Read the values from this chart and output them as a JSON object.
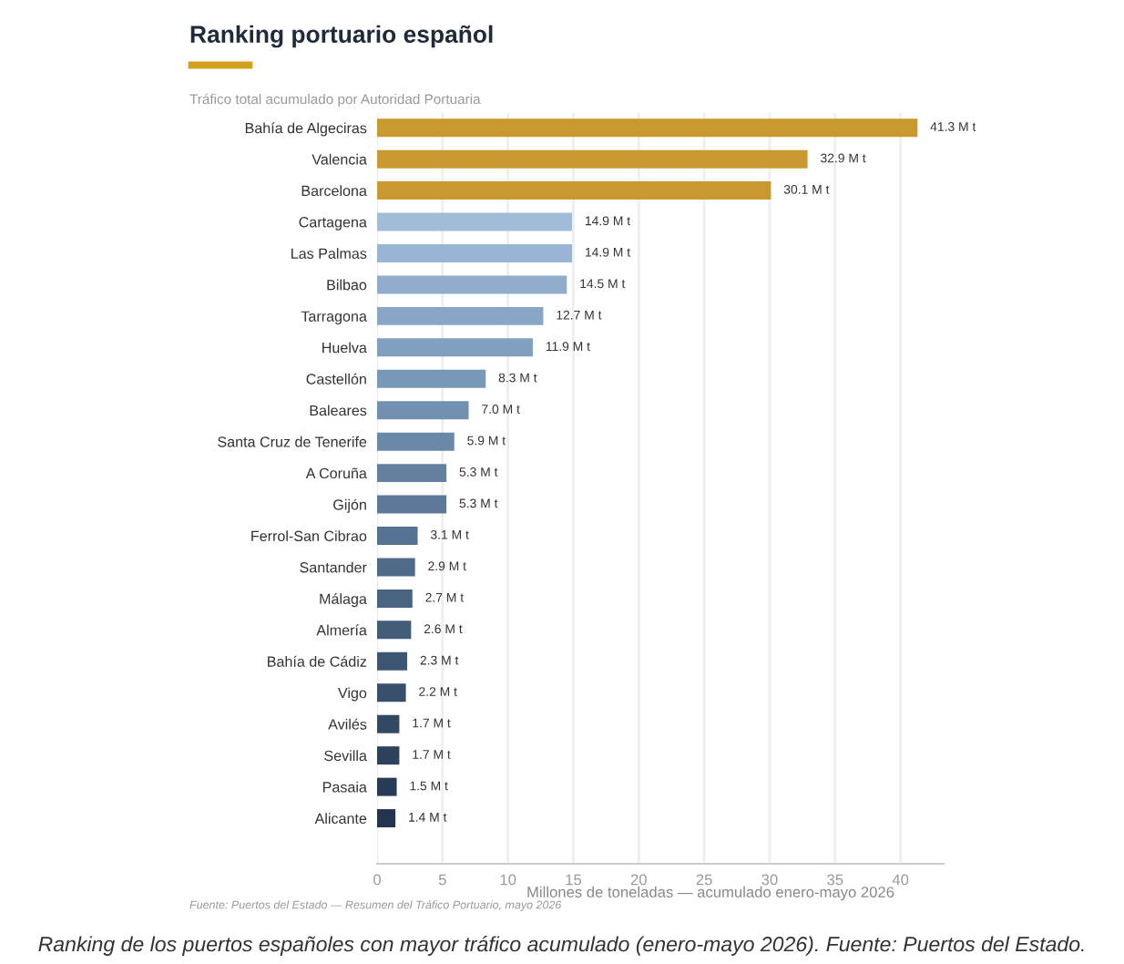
{
  "chart_data": {
    "type": "bar",
    "orientation": "horizontal",
    "title": "Ranking portuario español",
    "subtitle": "Tráfico total acumulado por Autoridad Portuaria",
    "xlabel": "Millones de toneladas — acumulado enero-mayo 2026",
    "categories": [
      "Bahía de Algeciras",
      "Valencia",
      "Barcelona",
      "Cartagena",
      "Las Palmas",
      "Bilbao",
      "Tarragona",
      "Huelva",
      "Castellón",
      "Baleares",
      "Santa Cruz de Tenerife",
      "A Coruña",
      "Gijón",
      "Ferrol-San Cibrao",
      "Santander",
      "Málaga",
      "Almería",
      "Bahía de Cádiz",
      "Vigo",
      "Avilés",
      "Sevilla",
      "Pasaia",
      "Alicante"
    ],
    "values": [
      41.3,
      32.9,
      30.1,
      14.9,
      14.9,
      14.5,
      12.7,
      11.9,
      8.3,
      7.0,
      5.9,
      5.3,
      5.3,
      3.1,
      2.9,
      2.7,
      2.6,
      2.3,
      2.2,
      1.7,
      1.7,
      1.5,
      1.4
    ],
    "value_labels": [
      "41.3 M t",
      "32.9 M t",
      "30.1 M t",
      "14.9 M t",
      "14.9 M t",
      "14.5 M t",
      "12.7 M t",
      "11.9 M t",
      "8.3 M t",
      "7.0 M t",
      "5.9 M t",
      "5.3 M t",
      "5.3 M t",
      "3.1 M t",
      "2.9 M t",
      "2.7 M t",
      "2.6 M t",
      "2.3 M t",
      "2.2 M t",
      "1.7 M t",
      "1.7 M t",
      "1.5 M t",
      "1.4 M t"
    ],
    "colors": [
      "#c9992f",
      "#c9992f",
      "#c9992f",
      "#9fbcd9",
      "#98b5d3",
      "#90aecc",
      "#88a6c5",
      "#819fbe",
      "#7997b6",
      "#7290af",
      "#6a88a7",
      "#63819f",
      "#5c7a98",
      "#557290",
      "#4f6b88",
      "#496481",
      "#435d79",
      "#3d5672",
      "#374f6a",
      "#324863",
      "#2d425c",
      "#283b55",
      "#23354e"
    ],
    "xlim": [
      0,
      43.3
    ],
    "xticks": [
      0,
      5,
      10,
      15,
      20,
      25,
      30,
      35,
      40
    ],
    "grid": "x",
    "legend": false,
    "annotations": [
      "Fuente: Puertos del Estado — Resumen del Tráfico Portuario, mayo 2026",
      "Ranking de los puertos españoles con mayor tráfico acumulado (enero-mayo 2026). Fuente: Puertos del Estado."
    ]
  }
}
